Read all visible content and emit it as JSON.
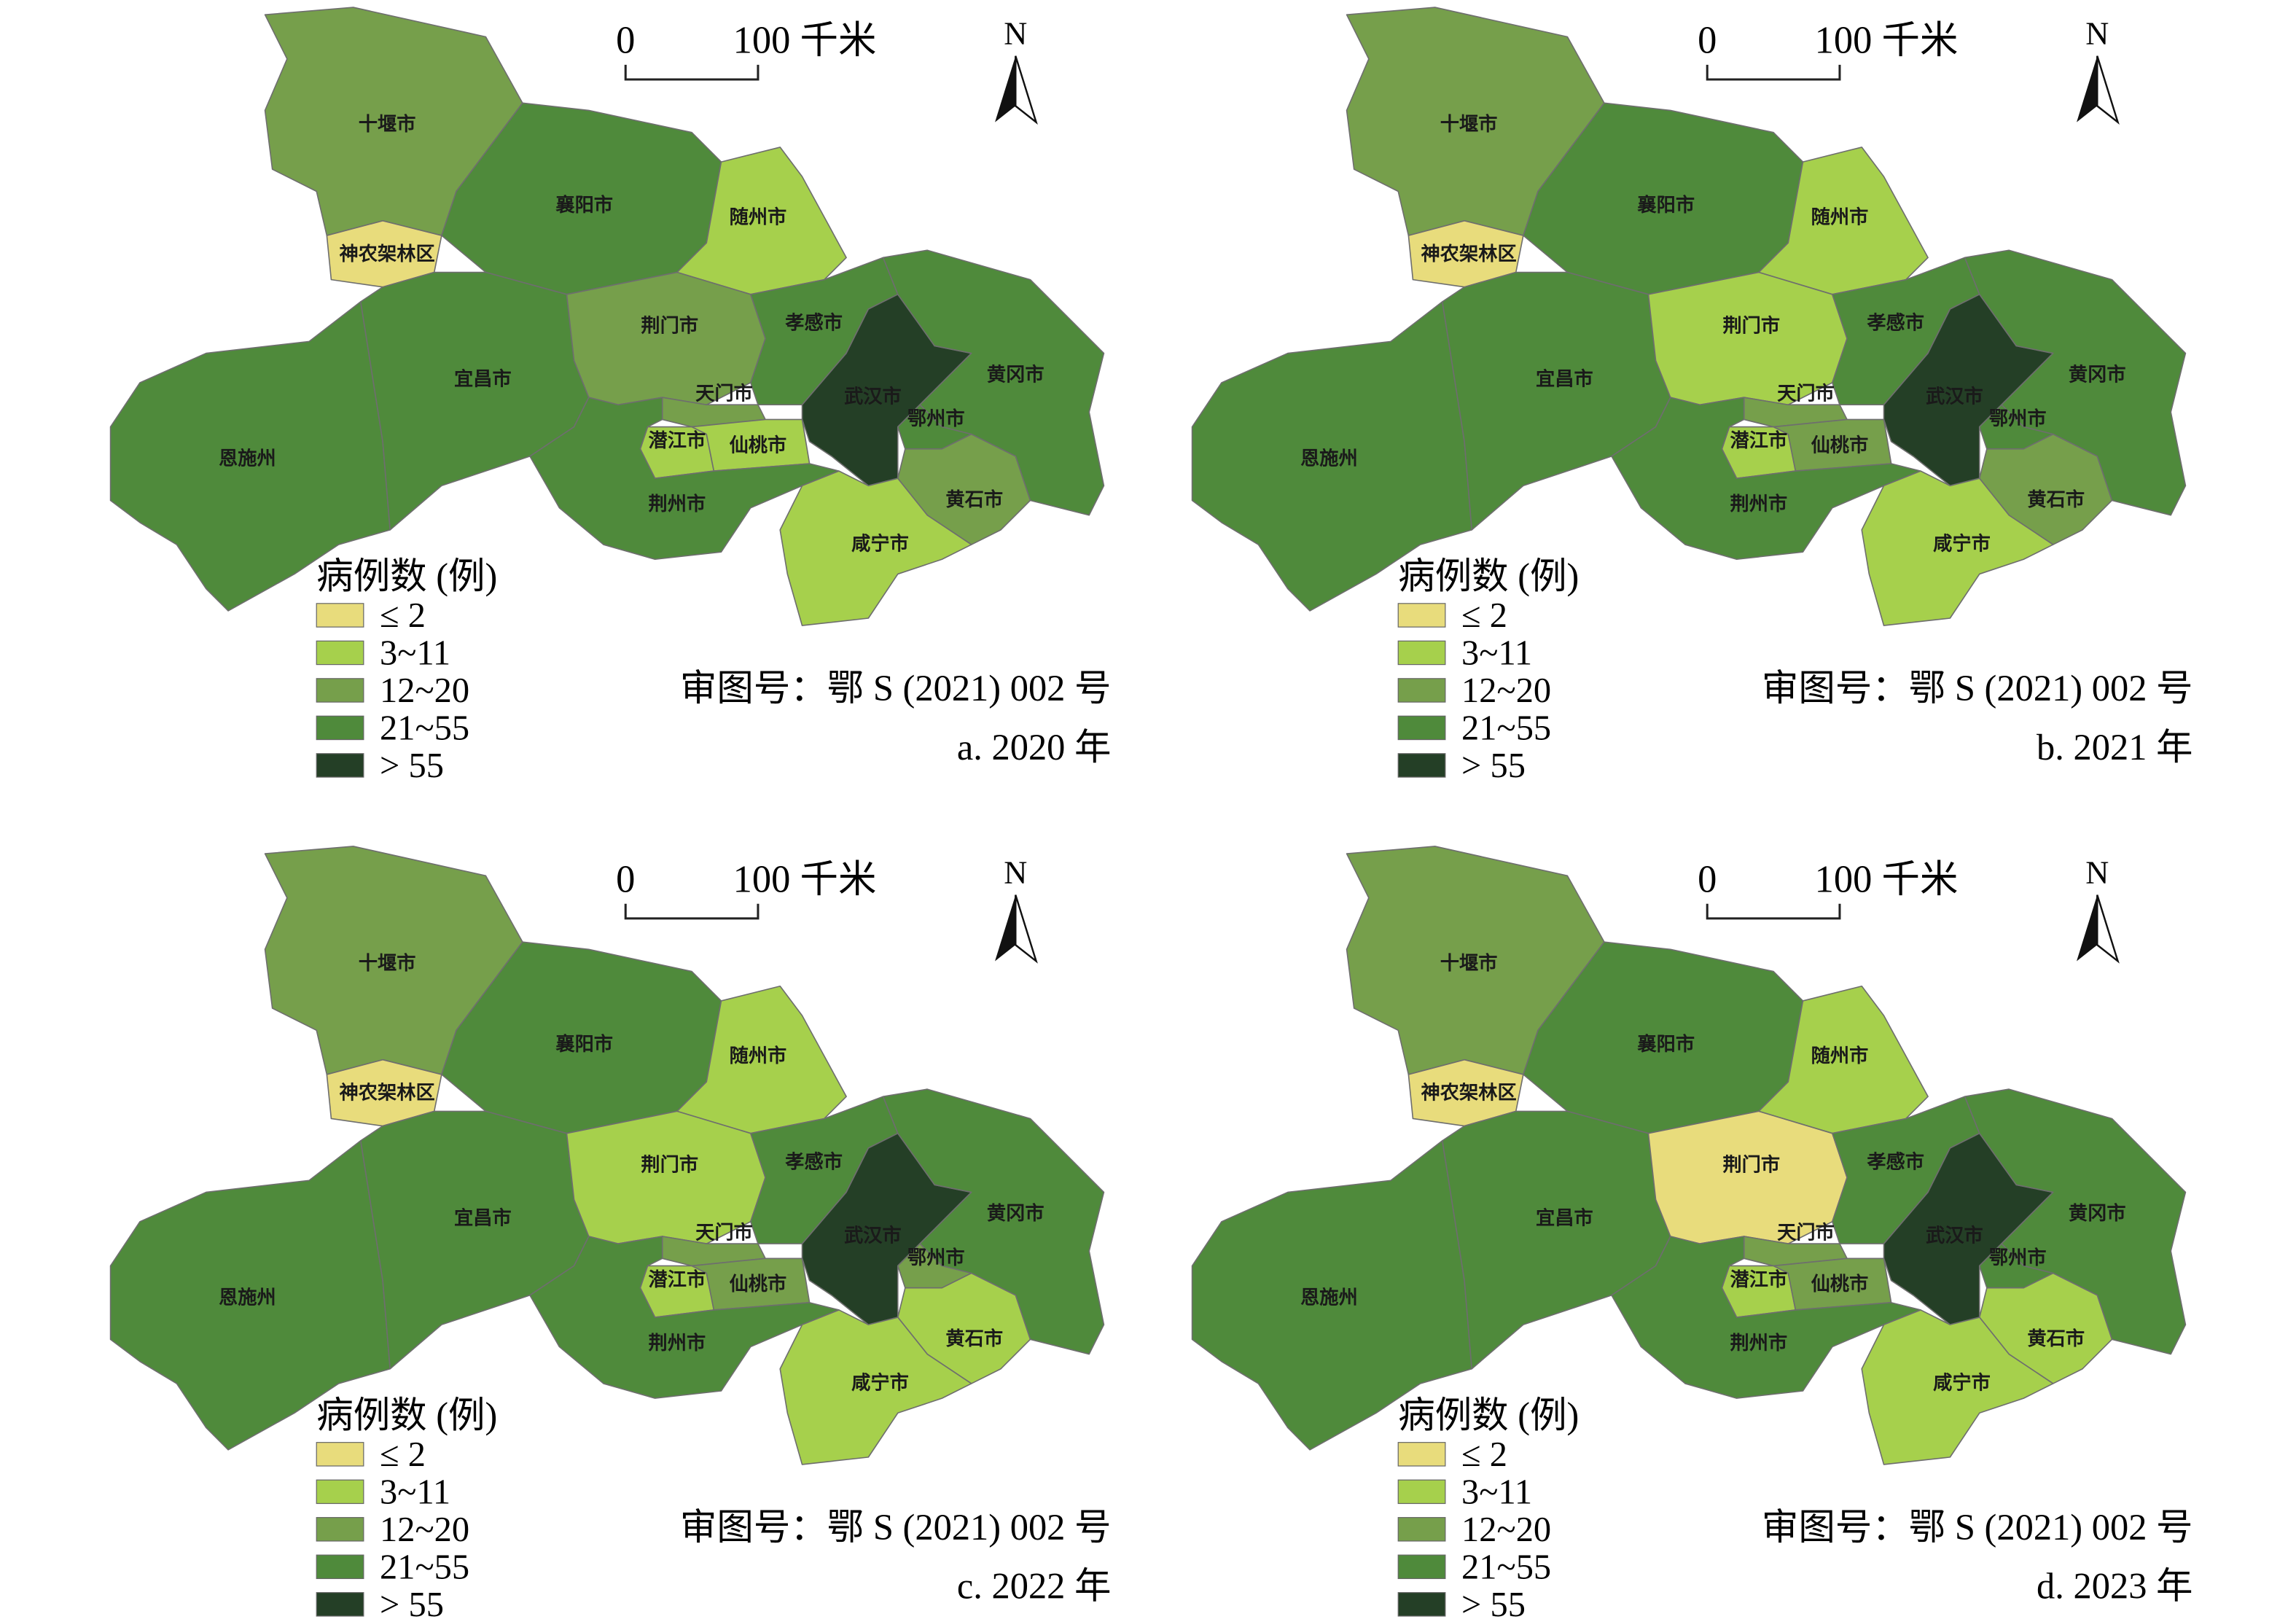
{
  "scale_bar": {
    "start": "0",
    "end": "100 千米"
  },
  "north": "N",
  "approval": "审图号：鄂 S (2021) 002 号",
  "legend": {
    "title": "病例数 (例)",
    "items": [
      {
        "label": "≤ 2",
        "color": "#e8dc7c"
      },
      {
        "label": "3~11",
        "color": "#a6d04c"
      },
      {
        "label": "12~20",
        "color": "#769f4b"
      },
      {
        "label": "21~55",
        "color": "#4f8a3b"
      },
      {
        "label": "> 55",
        "color": "#243f26"
      }
    ]
  },
  "regions": [
    "十堰市",
    "襄阳市",
    "随州市",
    "神农架林区",
    "恩施州",
    "宜昌市",
    "荆门市",
    "孝感市",
    "天门市",
    "潜江市",
    "仙桃市",
    "荆州市",
    "武汉市",
    "黄冈市",
    "鄂州市",
    "黄石市",
    "咸宁市"
  ],
  "panels": [
    {
      "caption": "a. 2020 年",
      "classes": [
        2,
        3,
        1,
        0,
        3,
        3,
        2,
        3,
        2,
        1,
        1,
        3,
        4,
        3,
        3,
        2,
        1
      ]
    },
    {
      "caption": "b. 2021 年",
      "classes": [
        2,
        3,
        1,
        0,
        3,
        3,
        1,
        3,
        2,
        1,
        2,
        3,
        4,
        3,
        3,
        2,
        1
      ]
    },
    {
      "caption": "c. 2022 年",
      "classes": [
        2,
        3,
        1,
        0,
        3,
        3,
        1,
        3,
        2,
        1,
        2,
        3,
        4,
        3,
        2,
        1,
        1
      ]
    },
    {
      "caption": "d. 2023 年",
      "classes": [
        2,
        3,
        1,
        0,
        3,
        3,
        0,
        3,
        2,
        1,
        2,
        3,
        4,
        3,
        3,
        1,
        1
      ]
    }
  ]
}
